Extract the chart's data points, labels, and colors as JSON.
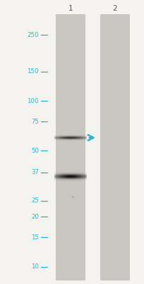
{
  "background_color": "#f5f3f0",
  "lane_color": "#c9c5c1",
  "fig_width": 2.05,
  "fig_height": 4.0,
  "dpi": 100,
  "marker_labels": [
    "250",
    "150",
    "100",
    "75",
    "50",
    "37",
    "25",
    "20",
    "15",
    "10"
  ],
  "marker_kda": [
    250,
    150,
    100,
    75,
    50,
    37,
    25,
    20,
    15,
    10
  ],
  "kda_min": 8.5,
  "kda_max": 340,
  "marker_color": "#2ab5c8",
  "label_fontsize": 6.2,
  "lane_label_fontsize": 7.5,
  "lane_labels": [
    "1",
    "2"
  ],
  "band1_kda": 60,
  "band1_intensity": 0.82,
  "band2_kda": 35,
  "band2_intensity": 1.0,
  "small_dot_kda": 26.5,
  "arrow_color": "#2ab5c8",
  "tick_color": "#2ab5c8",
  "text_color": "#2ab5c8",
  "white_gap_color": "#f5f3f0"
}
